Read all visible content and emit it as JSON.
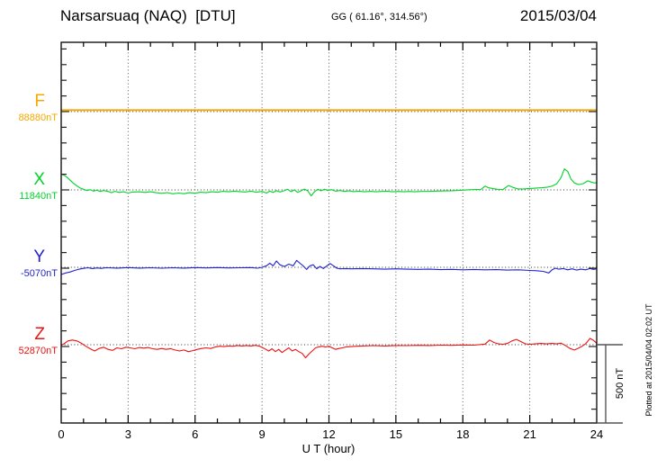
{
  "chart_data": {
    "type": "line",
    "title": "Narsarsuaq (NAQ)  [DTU]",
    "coords_label": "GG ( 61.16°, 314.56°)",
    "date_label": "2015/03/04",
    "xlabel": "U T (hour)",
    "x_range": [
      0,
      24
    ],
    "x_ticks": [
      0,
      3,
      6,
      9,
      12,
      15,
      18,
      21,
      24
    ],
    "minor_tick_every_hours": 1,
    "grid": "vertical dotted every 3 h, dotted horizontal baseline per component",
    "baseline_spacing_nT": 500,
    "scale_bar": {
      "label": "500 nT",
      "nT": 500
    },
    "plotted_at": "Plotted at 2015/04/04 02:02 UT",
    "series": [
      {
        "name": "F",
        "color": "#f5a800",
        "baseline_label": "88880nT",
        "baseline_nT": 88880,
        "points": [
          [
            0,
            10
          ],
          [
            6,
            10
          ],
          [
            12,
            10
          ],
          [
            18,
            10
          ],
          [
            24,
            10
          ]
        ]
      },
      {
        "name": "X",
        "color": "#00d42a",
        "baseline_label": "11840nT",
        "baseline_nT": 11840,
        "points": [
          [
            0,
            100
          ],
          [
            0.1,
            96
          ],
          [
            0.25,
            82
          ],
          [
            0.4,
            62
          ],
          [
            0.55,
            42
          ],
          [
            0.7,
            26
          ],
          [
            0.85,
            12
          ],
          [
            1,
            4
          ],
          [
            1.15,
            -4
          ],
          [
            1.3,
            2
          ],
          [
            1.45,
            -8
          ],
          [
            1.6,
            -2
          ],
          [
            1.75,
            -10
          ],
          [
            1.9,
            -4
          ],
          [
            2.1,
            -10
          ],
          [
            2.25,
            -18
          ],
          [
            2.4,
            -9
          ],
          [
            2.6,
            -16
          ],
          [
            2.8,
            -12
          ],
          [
            3,
            -20
          ],
          [
            3.2,
            -14
          ],
          [
            3.5,
            -12
          ],
          [
            3.75,
            -16
          ],
          [
            4,
            -12
          ],
          [
            4.25,
            -18
          ],
          [
            4.5,
            -22
          ],
          [
            4.75,
            -17
          ],
          [
            5,
            -25
          ],
          [
            5.25,
            -20
          ],
          [
            5.5,
            -24
          ],
          [
            5.75,
            -18
          ],
          [
            6,
            -21
          ],
          [
            6.25,
            -15
          ],
          [
            6.5,
            -18
          ],
          [
            6.75,
            -12
          ],
          [
            7,
            -15
          ],
          [
            7.25,
            -9
          ],
          [
            7.5,
            -12
          ],
          [
            7.75,
            -8
          ],
          [
            8,
            -11
          ],
          [
            8.25,
            -13
          ],
          [
            8.5,
            -8
          ],
          [
            8.75,
            -15
          ],
          [
            9,
            -10
          ],
          [
            9.2,
            -20
          ],
          [
            9.35,
            -8
          ],
          [
            9.5,
            -16
          ],
          [
            9.65,
            -5
          ],
          [
            9.8,
            -13
          ],
          [
            10,
            -5
          ],
          [
            10.15,
            4
          ],
          [
            10.3,
            -11
          ],
          [
            10.45,
            0
          ],
          [
            10.6,
            -16
          ],
          [
            10.75,
            -6
          ],
          [
            10.9,
            5
          ],
          [
            11.05,
            -6
          ],
          [
            11.2,
            -38
          ],
          [
            11.35,
            -12
          ],
          [
            11.5,
            4
          ],
          [
            11.65,
            -6
          ],
          [
            11.8,
            4
          ],
          [
            11.95,
            -4
          ],
          [
            12.1,
            2
          ],
          [
            12.3,
            -8
          ],
          [
            12.5,
            -4
          ],
          [
            12.7,
            -10
          ],
          [
            12.9,
            -6
          ],
          [
            13.1,
            -11
          ],
          [
            13.35,
            -8
          ],
          [
            13.6,
            -12
          ],
          [
            13.85,
            -9
          ],
          [
            14.1,
            -12
          ],
          [
            14.35,
            -10
          ],
          [
            14.6,
            -8
          ],
          [
            14.85,
            -12
          ],
          [
            15.1,
            -10
          ],
          [
            15.35,
            -12
          ],
          [
            15.6,
            -10
          ],
          [
            15.85,
            -12
          ],
          [
            16.1,
            -10
          ],
          [
            16.5,
            -9
          ],
          [
            17,
            -7
          ],
          [
            17.5,
            -5
          ],
          [
            18,
            -2
          ],
          [
            18.3,
            1
          ],
          [
            18.6,
            3
          ],
          [
            18.8,
            2
          ],
          [
            19,
            24
          ],
          [
            19.15,
            14
          ],
          [
            19.35,
            8
          ],
          [
            19.55,
            4
          ],
          [
            19.8,
            3
          ],
          [
            20.05,
            28
          ],
          [
            20.25,
            16
          ],
          [
            20.45,
            7
          ],
          [
            20.7,
            5
          ],
          [
            20.9,
            8
          ],
          [
            21.1,
            10
          ],
          [
            21.3,
            12
          ],
          [
            21.55,
            14
          ],
          [
            21.8,
            18
          ],
          [
            22,
            24
          ],
          [
            22.2,
            38
          ],
          [
            22.4,
            78
          ],
          [
            22.55,
            134
          ],
          [
            22.7,
            118
          ],
          [
            22.85,
            68
          ],
          [
            23,
            44
          ],
          [
            23.2,
            34
          ],
          [
            23.4,
            40
          ],
          [
            23.6,
            58
          ],
          [
            23.75,
            50
          ],
          [
            23.9,
            44
          ],
          [
            24,
            47
          ]
        ]
      },
      {
        "name": "Y",
        "color": "#2222cc",
        "baseline_label": "-5070nT",
        "baseline_nT": -5070,
        "points": [
          [
            0,
            -46
          ],
          [
            0.2,
            -36
          ],
          [
            0.4,
            -30
          ],
          [
            0.6,
            -20
          ],
          [
            0.8,
            -12
          ],
          [
            1,
            -7
          ],
          [
            1.2,
            -3
          ],
          [
            1.4,
            -8
          ],
          [
            1.6,
            -4
          ],
          [
            1.8,
            -7
          ],
          [
            2,
            -3
          ],
          [
            2.5,
            -5
          ],
          [
            3,
            -2
          ],
          [
            3.5,
            -5
          ],
          [
            4,
            -3
          ],
          [
            4.5,
            -6
          ],
          [
            5,
            -3
          ],
          [
            5.5,
            -5
          ],
          [
            6,
            -2
          ],
          [
            6.5,
            -4
          ],
          [
            7,
            -2
          ],
          [
            7.5,
            -4
          ],
          [
            8,
            -3
          ],
          [
            8.5,
            -2
          ],
          [
            8.8,
            -6
          ],
          [
            9,
            0
          ],
          [
            9.2,
            10
          ],
          [
            9.35,
            26
          ],
          [
            9.5,
            10
          ],
          [
            9.65,
            40
          ],
          [
            9.8,
            16
          ],
          [
            10,
            5
          ],
          [
            10.2,
            20
          ],
          [
            10.4,
            10
          ],
          [
            10.55,
            44
          ],
          [
            10.7,
            26
          ],
          [
            10.85,
            8
          ],
          [
            11,
            -14
          ],
          [
            11.15,
            10
          ],
          [
            11.3,
            16
          ],
          [
            11.45,
            -10
          ],
          [
            11.6,
            6
          ],
          [
            11.75,
            -8
          ],
          [
            11.9,
            8
          ],
          [
            12.05,
            24
          ],
          [
            12.2,
            10
          ],
          [
            12.35,
            -6
          ],
          [
            12.5,
            -10
          ],
          [
            12.75,
            -8
          ],
          [
            13,
            -10
          ],
          [
            13.5,
            -8
          ],
          [
            14,
            -10
          ],
          [
            14.5,
            -12
          ],
          [
            15,
            -10
          ],
          [
            15.5,
            -12
          ],
          [
            16,
            -13
          ],
          [
            16.5,
            -12
          ],
          [
            17,
            -15
          ],
          [
            17.5,
            -13
          ],
          [
            18,
            -16
          ],
          [
            18.5,
            -14
          ],
          [
            19,
            -16
          ],
          [
            19.5,
            -15
          ],
          [
            20,
            -18
          ],
          [
            20.5,
            -16
          ],
          [
            21,
            -20
          ],
          [
            21.3,
            -22
          ],
          [
            21.6,
            -26
          ],
          [
            21.85,
            -36
          ],
          [
            22,
            -16
          ],
          [
            22.15,
            -6
          ],
          [
            22.3,
            -12
          ],
          [
            22.5,
            -8
          ],
          [
            22.7,
            -16
          ],
          [
            22.9,
            -10
          ],
          [
            23.1,
            -18
          ],
          [
            23.3,
            -12
          ],
          [
            23.5,
            -16
          ],
          [
            23.7,
            -8
          ],
          [
            23.85,
            -13
          ],
          [
            24,
            -10
          ]
        ]
      },
      {
        "name": "Z",
        "color": "#ee1111",
        "baseline_label": "52870nT",
        "baseline_nT": 52870,
        "points": [
          [
            0,
            -4
          ],
          [
            0.15,
            8
          ],
          [
            0.3,
            24
          ],
          [
            0.5,
            30
          ],
          [
            0.7,
            24
          ],
          [
            0.9,
            10
          ],
          [
            1.1,
            -10
          ],
          [
            1.3,
            -26
          ],
          [
            1.5,
            -40
          ],
          [
            1.7,
            -24
          ],
          [
            1.9,
            -16
          ],
          [
            2.1,
            -30
          ],
          [
            2.3,
            -36
          ],
          [
            2.5,
            -20
          ],
          [
            2.7,
            -26
          ],
          [
            2.9,
            -16
          ],
          [
            3.1,
            -20
          ],
          [
            3.3,
            -26
          ],
          [
            3.5,
            -18
          ],
          [
            3.7,
            -22
          ],
          [
            3.9,
            -18
          ],
          [
            4.1,
            -26
          ],
          [
            4.3,
            -30
          ],
          [
            4.5,
            -24
          ],
          [
            4.7,
            -30
          ],
          [
            4.9,
            -25
          ],
          [
            5.1,
            -34
          ],
          [
            5.3,
            -40
          ],
          [
            5.5,
            -34
          ],
          [
            5.7,
            -44
          ],
          [
            5.9,
            -38
          ],
          [
            6.1,
            -30
          ],
          [
            6.3,
            -24
          ],
          [
            6.5,
            -20
          ],
          [
            6.7,
            -24
          ],
          [
            6.9,
            -15
          ],
          [
            7.1,
            -10
          ],
          [
            7.3,
            -12
          ],
          [
            7.5,
            -8
          ],
          [
            7.7,
            -10
          ],
          [
            7.9,
            -5
          ],
          [
            8.1,
            -8
          ],
          [
            8.3,
            -5
          ],
          [
            8.5,
            -8
          ],
          [
            8.7,
            -4
          ],
          [
            8.9,
            -10
          ],
          [
            9.1,
            -24
          ],
          [
            9.3,
            -40
          ],
          [
            9.45,
            -26
          ],
          [
            9.6,
            -44
          ],
          [
            9.75,
            -30
          ],
          [
            9.9,
            -50
          ],
          [
            10.05,
            -34
          ],
          [
            10.2,
            -20
          ],
          [
            10.35,
            -40
          ],
          [
            10.5,
            -30
          ],
          [
            10.65,
            -44
          ],
          [
            10.8,
            -56
          ],
          [
            10.95,
            -84
          ],
          [
            11.1,
            -60
          ],
          [
            11.25,
            -40
          ],
          [
            11.4,
            -20
          ],
          [
            11.55,
            -14
          ],
          [
            11.7,
            -10
          ],
          [
            11.85,
            -15
          ],
          [
            12,
            -10
          ],
          [
            12.15,
            -20
          ],
          [
            12.3,
            -30
          ],
          [
            12.45,
            -24
          ],
          [
            12.6,
            -20
          ],
          [
            12.8,
            -14
          ],
          [
            13,
            -12
          ],
          [
            13.25,
            -10
          ],
          [
            13.5,
            -8
          ],
          [
            14,
            -6
          ],
          [
            14.5,
            -8
          ],
          [
            15,
            -5
          ],
          [
            15.5,
            -6
          ],
          [
            16,
            -4
          ],
          [
            16.5,
            -5
          ],
          [
            17,
            -3
          ],
          [
            17.5,
            -4
          ],
          [
            18,
            -2
          ],
          [
            18.5,
            -3
          ],
          [
            19,
            4
          ],
          [
            19.2,
            30
          ],
          [
            19.4,
            14
          ],
          [
            19.6,
            5
          ],
          [
            19.8,
            3
          ],
          [
            20,
            8
          ],
          [
            20.2,
            24
          ],
          [
            20.4,
            34
          ],
          [
            20.6,
            20
          ],
          [
            20.8,
            6
          ],
          [
            21,
            3
          ],
          [
            21.25,
            5
          ],
          [
            21.5,
            8
          ],
          [
            21.75,
            5
          ],
          [
            22,
            8
          ],
          [
            22.2,
            5
          ],
          [
            22.4,
            10
          ],
          [
            22.6,
            -5
          ],
          [
            22.8,
            -24
          ],
          [
            23,
            -34
          ],
          [
            23.15,
            -24
          ],
          [
            23.3,
            -14
          ],
          [
            23.5,
            5
          ],
          [
            23.7,
            40
          ],
          [
            23.85,
            28
          ],
          [
            24,
            10
          ]
        ]
      }
    ]
  }
}
